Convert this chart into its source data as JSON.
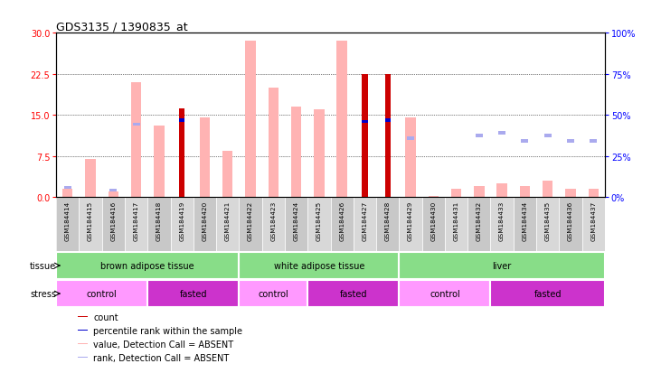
{
  "title": "GDS3135 / 1390835_at",
  "samples": [
    "GSM184414",
    "GSM184415",
    "GSM184416",
    "GSM184417",
    "GSM184418",
    "GSM184419",
    "GSM184420",
    "GSM184421",
    "GSM184422",
    "GSM184423",
    "GSM184424",
    "GSM184425",
    "GSM184426",
    "GSM184427",
    "GSM184428",
    "GSM184429",
    "GSM184430",
    "GSM184431",
    "GSM184432",
    "GSM184433",
    "GSM184434",
    "GSM184435",
    "GSM184436",
    "GSM184437"
  ],
  "value_absent": [
    1.5,
    7.0,
    1.0,
    21.0,
    13.0,
    null,
    14.5,
    8.5,
    28.5,
    20.0,
    16.5,
    16.0,
    28.5,
    null,
    null,
    14.5,
    0.3,
    1.5,
    2.0,
    2.5,
    2.0,
    3.0,
    1.5,
    1.5
  ],
  "rank_absent_val": [
    1.5,
    null,
    1.0,
    13.0,
    null,
    null,
    null,
    null,
    null,
    null,
    null,
    null,
    null,
    null,
    null,
    10.5,
    null,
    null,
    11.0,
    11.5,
    10.0,
    11.0,
    10.0,
    10.0
  ],
  "count": [
    null,
    null,
    null,
    null,
    null,
    16.2,
    null,
    null,
    null,
    null,
    null,
    null,
    null,
    22.5,
    22.5,
    null,
    null,
    null,
    null,
    null,
    null,
    null,
    null,
    null
  ],
  "percentile_rank": [
    null,
    null,
    null,
    null,
    null,
    13.8,
    null,
    null,
    null,
    null,
    null,
    null,
    null,
    13.5,
    13.8,
    null,
    null,
    null,
    null,
    null,
    null,
    null,
    null,
    null
  ],
  "tissue_groups": [
    {
      "label": "brown adipose tissue",
      "start": 0,
      "end": 8
    },
    {
      "label": "white adipose tissue",
      "start": 8,
      "end": 15
    },
    {
      "label": "liver",
      "start": 15,
      "end": 24
    }
  ],
  "stress_groups": [
    {
      "label": "control",
      "start": 0,
      "end": 4,
      "color": "#ff99ff"
    },
    {
      "label": "fasted",
      "start": 4,
      "end": 8,
      "color": "#cc33cc"
    },
    {
      "label": "control",
      "start": 8,
      "end": 11,
      "color": "#ff99ff"
    },
    {
      "label": "fasted",
      "start": 11,
      "end": 15,
      "color": "#cc33cc"
    },
    {
      "label": "control",
      "start": 15,
      "end": 19,
      "color": "#ff99ff"
    },
    {
      "label": "fasted",
      "start": 19,
      "end": 24,
      "color": "#cc33cc"
    }
  ],
  "ylim_left": [
    0,
    30
  ],
  "ylim_right": [
    0,
    100
  ],
  "yticks_left": [
    0,
    7.5,
    15,
    22.5,
    30
  ],
  "yticks_right": [
    0,
    25,
    50,
    75,
    100
  ],
  "color_value_absent": "#ffb3b3",
  "color_rank_absent": "#aaaaee",
  "color_count": "#cc0000",
  "color_percentile": "#0000cc",
  "color_tissue": "#88dd88",
  "bar_width": 0.45
}
